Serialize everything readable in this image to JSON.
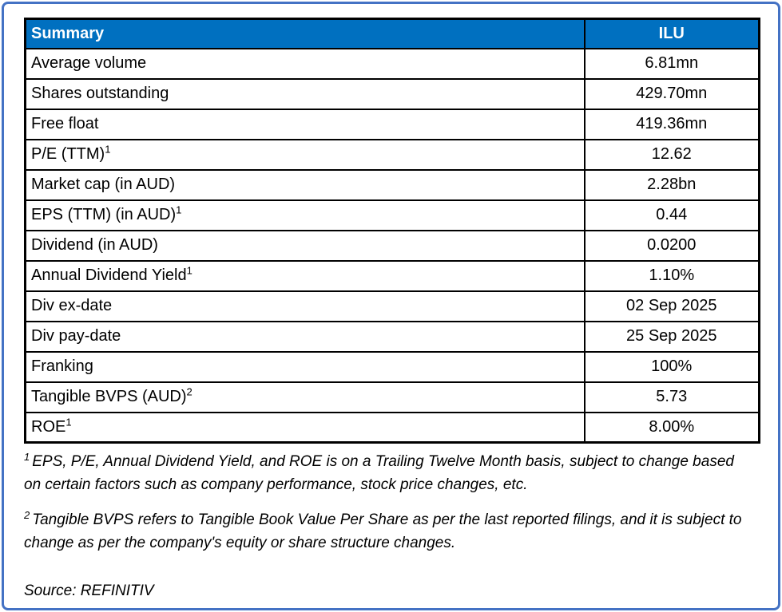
{
  "table": {
    "header": {
      "label": "Summary",
      "value": "ILU"
    },
    "rows": [
      {
        "label": "Average volume",
        "sup": "",
        "value": "6.81mn"
      },
      {
        "label": "Shares outstanding",
        "sup": "",
        "value": "429.70mn"
      },
      {
        "label": "Free float",
        "sup": "",
        "value": "419.36mn"
      },
      {
        "label": "P/E (TTM)",
        "sup": "1",
        "value": "12.62"
      },
      {
        "label": "Market cap (in AUD)",
        "sup": "",
        "value": "2.28bn"
      },
      {
        "label": "EPS (TTM) (in AUD)",
        "sup": "1",
        "value": "0.44"
      },
      {
        "label": "Dividend (in AUD)",
        "sup": "",
        "value": "0.0200"
      },
      {
        "label": "Annual Dividend Yield",
        "sup": "1",
        "value": "1.10%"
      },
      {
        "label": "Div ex-date",
        "sup": "",
        "value": "02 Sep 2025"
      },
      {
        "label": "Div pay-date",
        "sup": "",
        "value": "25 Sep 2025"
      },
      {
        "label": "Franking",
        "sup": "",
        "value": "100%"
      },
      {
        "label": "Tangible BVPS (AUD)",
        "sup": "2",
        "value": "5.73"
      },
      {
        "label": "ROE",
        "sup": "1",
        "value": "8.00%"
      }
    ]
  },
  "footnotes": [
    {
      "sup": "1",
      "text": "EPS, P/E, Annual Dividend Yield, and ROE is on a Trailing Twelve Month basis, subject to change based on certain factors such as company performance, stock price changes, etc."
    },
    {
      "sup": "2",
      "text": "Tangible BVPS refers to Tangible Book Value Per Share as per the last reported filings, and it is subject to change as per the company's equity or share structure changes."
    }
  ],
  "source": "Source: REFINITIV",
  "colors": {
    "header_bg": "#0070C0",
    "frame_border": "#4472C4",
    "table_border": "#000000"
  }
}
